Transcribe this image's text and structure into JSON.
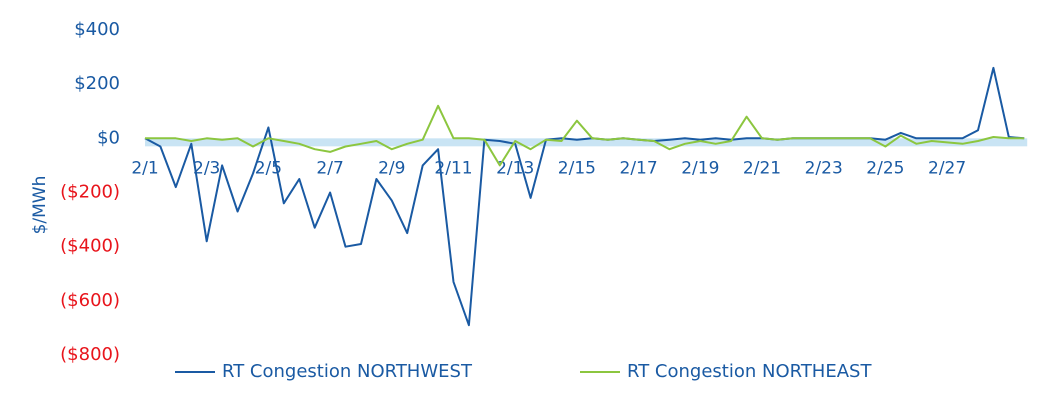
{
  "chart_data": {
    "type": "line",
    "y_label": "$/MWh",
    "categories": [
      "2/1",
      null,
      null,
      null,
      "2/3",
      null,
      null,
      null,
      "2/5",
      null,
      null,
      null,
      "2/7",
      null,
      null,
      null,
      "2/9",
      null,
      null,
      null,
      "2/11",
      null,
      null,
      null,
      "2/13",
      null,
      null,
      null,
      "2/15",
      null,
      null,
      null,
      "2/17",
      null,
      null,
      null,
      "2/19",
      null,
      null,
      null,
      "2/21",
      null,
      null,
      null,
      "2/23",
      null,
      null,
      null,
      "2/25",
      null,
      null,
      null,
      "2/27",
      null,
      null,
      null,
      null,
      null
    ],
    "series": [
      {
        "name": "RT Congestion NORTHWEST",
        "color": "#1a5aa3",
        "values": [
          0,
          -30,
          -180,
          -20,
          -380,
          -100,
          -270,
          -130,
          40,
          -240,
          -150,
          -330,
          -200,
          -400,
          -390,
          -150,
          -230,
          -350,
          -100,
          -40,
          -530,
          -690,
          -5,
          -10,
          -20,
          -220,
          -5,
          0,
          -5,
          0,
          -5,
          0,
          -5,
          -10,
          -5,
          0,
          -5,
          0,
          -5,
          0,
          0,
          -5,
          0,
          0,
          0,
          0,
          0,
          0,
          -5,
          20,
          0,
          0,
          0,
          0,
          30,
          260,
          5,
          0
        ]
      },
      {
        "name": "RT Congestion NORTHEAST",
        "color": "#8cc63f",
        "values": [
          0,
          0,
          0,
          -10,
          0,
          -5,
          0,
          -30,
          0,
          -10,
          -20,
          -40,
          -50,
          -30,
          -20,
          -10,
          -40,
          -20,
          -5,
          120,
          0,
          0,
          -5,
          -100,
          -10,
          -40,
          -5,
          -10,
          65,
          0,
          -5,
          0,
          -5,
          -10,
          -40,
          -20,
          -10,
          -20,
          -10,
          80,
          0,
          -5,
          0,
          0,
          0,
          0,
          0,
          0,
          -30,
          10,
          -20,
          -10,
          -15,
          -20,
          -10,
          5,
          0,
          0
        ]
      }
    ],
    "ylim": [
      -800,
      400
    ],
    "yticks": [
      {
        "value": 400,
        "label": "$400"
      },
      {
        "value": 200,
        "label": "$200"
      },
      {
        "value": 0,
        "label": "$0"
      },
      {
        "value": -200,
        "label": "($200)"
      },
      {
        "value": -400,
        "label": "($400)"
      },
      {
        "value": -600,
        "label": "($600)"
      },
      {
        "value": -800,
        "label": "($800)"
      }
    ],
    "tick_color": "#1a5aa3",
    "negative_tick_color": "#e8141b",
    "band_color": "#c9e4f4"
  }
}
